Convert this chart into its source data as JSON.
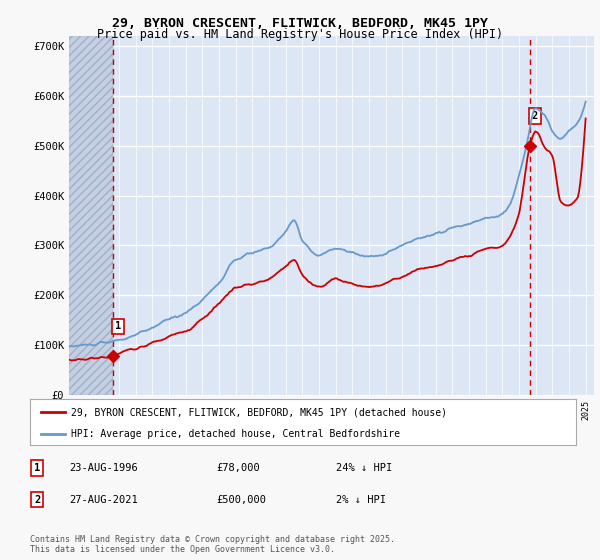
{
  "title_line1": "29, BYRON CRESCENT, FLITWICK, BEDFORD, MK45 1PY",
  "title_line2": "Price paid vs. HM Land Registry's House Price Index (HPI)",
  "background_color": "#f8f8f8",
  "plot_bg_color": "#dce6f5",
  "legend_line1": "29, BYRON CRESCENT, FLITWICK, BEDFORD, MK45 1PY (detached house)",
  "legend_line2": "HPI: Average price, detached house, Central Bedfordshire",
  "footnote": "Contains HM Land Registry data © Crown copyright and database right 2025.\nThis data is licensed under the Open Government Licence v3.0.",
  "sale1_label": "1",
  "sale1_date": "23-AUG-1996",
  "sale1_price": "£78,000",
  "sale1_note": "24% ↓ HPI",
  "sale2_label": "2",
  "sale2_date": "27-AUG-2021",
  "sale2_price": "£500,000",
  "sale2_note": "2% ↓ HPI",
  "red_line_color": "#cc0000",
  "blue_line_color": "#6699cc",
  "dashed_line_color": "#cc0000",
  "sale1_year": 1996.65,
  "sale2_year": 2021.65,
  "xmin": 1994.0,
  "xmax": 2025.5,
  "ymin": 0,
  "ymax": 720000,
  "yticks": [
    0,
    100000,
    200000,
    300000,
    400000,
    500000,
    600000,
    700000
  ],
  "ytick_labels": [
    "£0",
    "£100K",
    "£200K",
    "£300K",
    "£400K",
    "£500K",
    "£600K",
    "£700K"
  ],
  "hatch_xmax": 1996.65,
  "sale1_value": 78000,
  "sale2_value": 500000
}
